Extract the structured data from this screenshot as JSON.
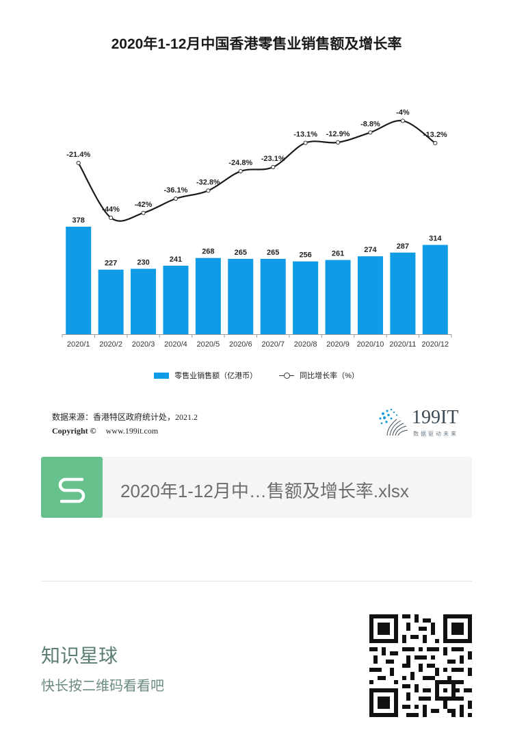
{
  "chart_data": {
    "type": "bar+line",
    "title": "2020年1-12月中国香港零售业销售额及增长率",
    "categories": [
      "2020/1",
      "2020/2",
      "2020/3",
      "2020/4",
      "2020/5",
      "2020/6",
      "2020/7",
      "2020/8",
      "2020/9",
      "2020/10",
      "2020/11",
      "2020/12"
    ],
    "series": [
      {
        "name": "零售业销售额（亿港币）",
        "type": "bar",
        "color": "#0f9be6",
        "values": [
          378,
          227,
          230,
          241,
          268,
          265,
          265,
          256,
          261,
          274,
          287,
          314
        ],
        "labels": [
          "378",
          "227",
          "230",
          "241",
          "268",
          "265",
          "265",
          "256",
          "261",
          "274",
          "287",
          "314"
        ]
      },
      {
        "name": "同比增长率（%）",
        "type": "line",
        "color": "#1a1a1a",
        "values": [
          -21.4,
          -44,
          -42,
          -36.1,
          -32.8,
          -24.8,
          -23.1,
          -13.1,
          -12.9,
          -8.8,
          -4,
          -13.2
        ],
        "labels": [
          "-21.4%",
          "-44%",
          "-42%",
          "-36.1%",
          "-32.8%",
          "-24.8%",
          "-23.1%",
          "-13.1%",
          "-12.9%",
          "-8.8%",
          "-4%",
          "-13.2%"
        ]
      }
    ],
    "legend_position": "bottom",
    "grid": false
  },
  "footer": {
    "source": "数据来源：香港特区政府统计处，2021.2",
    "copyright_label": "Copyright ©",
    "copyright_url": "www.199it.com",
    "logo_text": "199IT",
    "logo_tagline": "数据驱动未来"
  },
  "file_card": {
    "name": "2020年1-12月中…售额及增长率.xlsx"
  },
  "planet": {
    "title": "知识星球",
    "subtitle": "快长按二维码看看吧"
  },
  "colors": {
    "bar": "#0f9be6",
    "card_icon": "#66c18c",
    "planet_text": "#5c7d74"
  }
}
